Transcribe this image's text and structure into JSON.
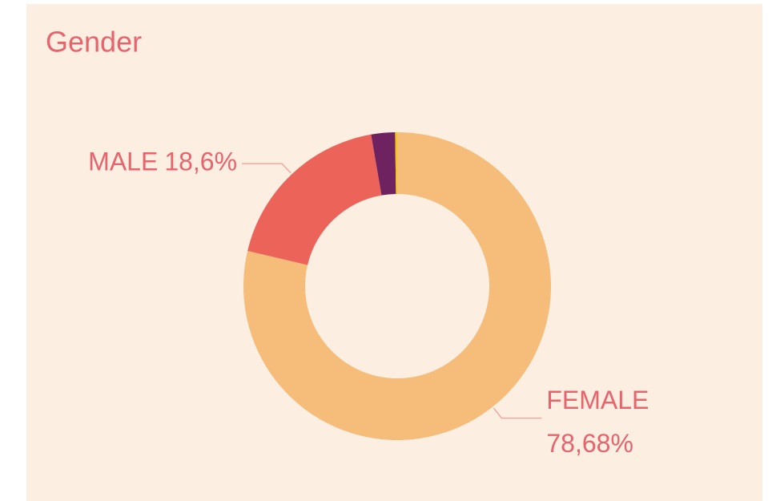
{
  "chart_data": {
    "type": "donut",
    "title": "Gender",
    "categories": [
      "FEMALE",
      "MALE",
      null,
      null
    ],
    "values": [
      78.68,
      18.6,
      2.5,
      0.22
    ],
    "value_labels": [
      "78,68%",
      "18,6%",
      null,
      null
    ],
    "colors": [
      "#f6bc7a",
      "#ec6459",
      "#6e2360",
      "#f2c811"
    ]
  }
}
